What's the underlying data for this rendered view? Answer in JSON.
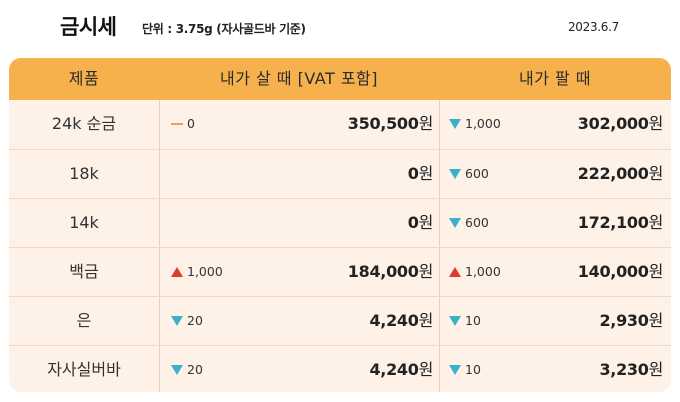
{
  "header": {
    "title": "금시세",
    "unit": "단위 : 3.75g (자사골드바 기준)",
    "date": "2023.6.7"
  },
  "table": {
    "columns": [
      "제품",
      "내가 살 때 [VAT 포함]",
      "내가 팔 때"
    ],
    "currency_suffix": "원",
    "rows": [
      {
        "name": "24k 순금",
        "buy_change_dir": "flat",
        "buy_change": "0",
        "buy_price": "350,500",
        "sell_change_dir": "down",
        "sell_change": "1,000",
        "sell_price": "302,000"
      },
      {
        "name": "18k",
        "buy_change_dir": "none",
        "buy_change": "",
        "buy_price": "0",
        "sell_change_dir": "down",
        "sell_change": "600",
        "sell_price": "222,000"
      },
      {
        "name": "14k",
        "buy_change_dir": "none",
        "buy_change": "",
        "buy_price": "0",
        "sell_change_dir": "down",
        "sell_change": "600",
        "sell_price": "172,100"
      },
      {
        "name": "백금",
        "buy_change_dir": "up",
        "buy_change": "1,000",
        "buy_price": "184,000",
        "sell_change_dir": "up",
        "sell_change": "1,000",
        "sell_price": "140,000"
      },
      {
        "name": "은",
        "buy_change_dir": "down",
        "buy_change": "20",
        "buy_price": "4,240",
        "sell_change_dir": "down",
        "sell_change": "10",
        "sell_price": "2,930"
      },
      {
        "name": "자사실버바",
        "buy_change_dir": "down",
        "buy_change": "20",
        "buy_price": "4,240",
        "sell_change_dir": "down",
        "sell_change": "10",
        "sell_price": "3,230"
      }
    ]
  },
  "colors": {
    "header_bg": "#f6b14c",
    "table_bg": "#fdf1e8",
    "down": "#3bb1c9",
    "up": "#e03a2f",
    "flat": "#f2a04a"
  }
}
